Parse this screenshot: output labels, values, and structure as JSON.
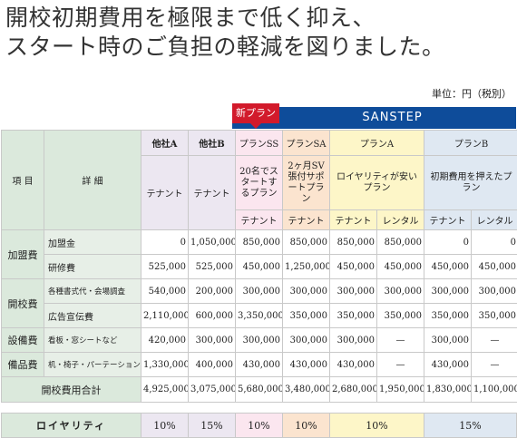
{
  "headline": {
    "line1": "開校初期費用を極限まで低く抑え、",
    "line2": "スタート時のご負担の軽減を図りました。"
  },
  "unit_label": "単位：円（税別）",
  "new_badge": "新プラン",
  "sanstep_label": "SANSTEP",
  "header": {
    "item": "項 目",
    "detail": "詳 細",
    "other_a": "他社A",
    "other_b": "他社B",
    "plan_ss": "プランSS",
    "plan_sa": "プランSA",
    "plan_a": "プランA",
    "plan_b": "プランB"
  },
  "desc": {
    "other_a": "テナント",
    "other_b": "テナント",
    "ss": "20名でスタートするプラン",
    "sa": "2ヶ月SV張付サポートプラン",
    "a": "ロイヤリティが安いプラン",
    "b": "初期費用を押えたプラン"
  },
  "sub": {
    "ss": "テナント",
    "sa": "テナント",
    "a1": "テナント",
    "a2": "レンタル",
    "b1": "テナント",
    "b2": "レンタル"
  },
  "groups": {
    "kameihi": "加盟費",
    "kaikouhi": "開校費",
    "setsubihi": "設備費",
    "bihinhi": "備品費"
  },
  "rows": {
    "kameikin": {
      "label": "加盟金",
      "oa": "0",
      "ob": "1,050,000",
      "ss": "850,000",
      "sa": "850,000",
      "a1": "850,000",
      "a2": "850,000",
      "b1": "0",
      "b2": "0"
    },
    "kenshuhi": {
      "label": "研修費",
      "oa": "525,000",
      "ob": "525,000",
      "ss": "450,000",
      "sa": "1,250,000",
      "a1": "450,000",
      "a2": "450,000",
      "b1": "450,000",
      "b2": "450,000"
    },
    "shoshiki": {
      "label": "各種書式代・会場調査",
      "oa": "540,000",
      "ob": "200,000",
      "ss": "300,000",
      "sa": "300,000",
      "a1": "300,000",
      "a2": "300,000",
      "b1": "300,000",
      "b2": "300,000"
    },
    "koukoku": {
      "label": "広告宣伝費",
      "oa": "2,110,000",
      "ob": "600,000",
      "ss": "3,350,000",
      "sa": "350,000",
      "a1": "350,000",
      "a2": "350,000",
      "b1": "350,000",
      "b2": "350,000"
    },
    "kanban": {
      "label": "看板・窓シートなど",
      "oa": "420,000",
      "ob": "300,000",
      "ss": "300,000",
      "sa": "300,000",
      "a1": "300,000",
      "a2": "—",
      "b1": "300,000",
      "b2": "—"
    },
    "tsukue": {
      "label": "机・椅子・パーテーション",
      "oa": "1,330,000",
      "ob": "400,000",
      "ss": "430,000",
      "sa": "430,000",
      "a1": "430,000",
      "a2": "—",
      "b1": "430,000",
      "b2": "—"
    },
    "total": {
      "label": "開校費用合計",
      "oa": "4,925,000",
      "ob": "3,075,000",
      "ss": "5,680,000",
      "sa": "3,480,000",
      "a1": "2,680,000",
      "a2": "1,950,000",
      "b1": "1,830,000",
      "b2": "1,100,000"
    }
  },
  "royalty": {
    "label": "ロイヤリティ",
    "oa": "10%",
    "ob": "15%",
    "ss": "10%",
    "sa": "10%",
    "a": "10%",
    "b": "15%"
  },
  "colors": {
    "header_green": "#dbe9dc",
    "others_purple": "#ece7f1",
    "plan_ss_pink": "#fbe6ef",
    "plan_sa_orange": "#fbe4cf",
    "plan_a_yellow": "#fdf6c8",
    "plan_b_blue": "#dfe8f2",
    "sanstep_blue": "#0e4c9a",
    "new_badge_red": "#d21a2b"
  }
}
